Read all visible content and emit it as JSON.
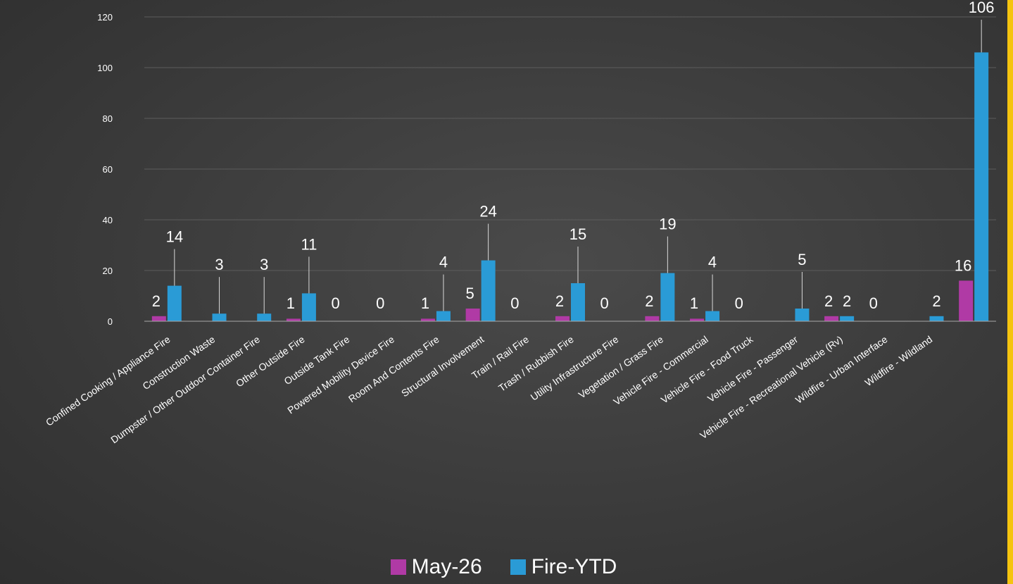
{
  "colors": {
    "series_may": "#b03aa5",
    "series_ytd": "#2a9bd6",
    "border": "#f5c40f",
    "gridline": "#5c5c5c",
    "leader_line": "#d9d9d9"
  },
  "legend": {
    "items": [
      {
        "label": "May-26",
        "color": "#b03aa5"
      },
      {
        "label": "Fire-YTD",
        "color": "#2a9bd6"
      }
    ]
  },
  "chart_data": {
    "type": "bar",
    "title": "",
    "xlabel": "",
    "ylabel": "",
    "ylim": [
      0,
      120
    ],
    "yticks": [
      0,
      20,
      40,
      60,
      80,
      100,
      120
    ],
    "grid": true,
    "legend_position": "bottom",
    "categories": [
      "Confined Cooking / Appliance Fire",
      "Construction Waste",
      "Dumpster / Other Outdoor Container Fire",
      "Other Outside Fire",
      "Outside Tank Fire",
      "Powered Mobility Device Fire",
      "Room And Contents Fire",
      "Structural Involvement",
      "Train / Rail Fire",
      "Trash / Rubbish Fire",
      "Utility Infrastructure Fire",
      "Vegetation / Grass Fire",
      "Vehicle Fire - Commercial",
      "Vehicle Fire - Food Truck",
      "Vehicle Fire - Passenger",
      "Vehicle Fire - Recreational Vehicle (Rv)",
      "Wildfire - Urban Interface",
      "Wildfire - Wildland",
      ""
    ],
    "series": [
      {
        "name": "May-26",
        "values": [
          2,
          0,
          0,
          1,
          0,
          0,
          1,
          5,
          0,
          2,
          0,
          2,
          1,
          0,
          0,
          2,
          0,
          0,
          16
        ],
        "labels": [
          "2",
          "",
          "",
          "1",
          "0",
          "0",
          "1",
          "5",
          "0",
          "2",
          "0",
          "2",
          "1",
          "0",
          "",
          "2",
          "0",
          "",
          "16"
        ]
      },
      {
        "name": "Fire-YTD",
        "values": [
          14,
          3,
          3,
          11,
          0,
          0,
          4,
          24,
          0,
          15,
          0,
          19,
          4,
          0,
          5,
          2,
          0,
          2,
          106
        ],
        "labels": [
          "14",
          "3",
          "3",
          "11",
          "",
          "",
          "4",
          "24",
          "",
          "15",
          "",
          "19",
          "4",
          "",
          "5",
          "2",
          "",
          "2",
          "106"
        ]
      }
    ]
  }
}
